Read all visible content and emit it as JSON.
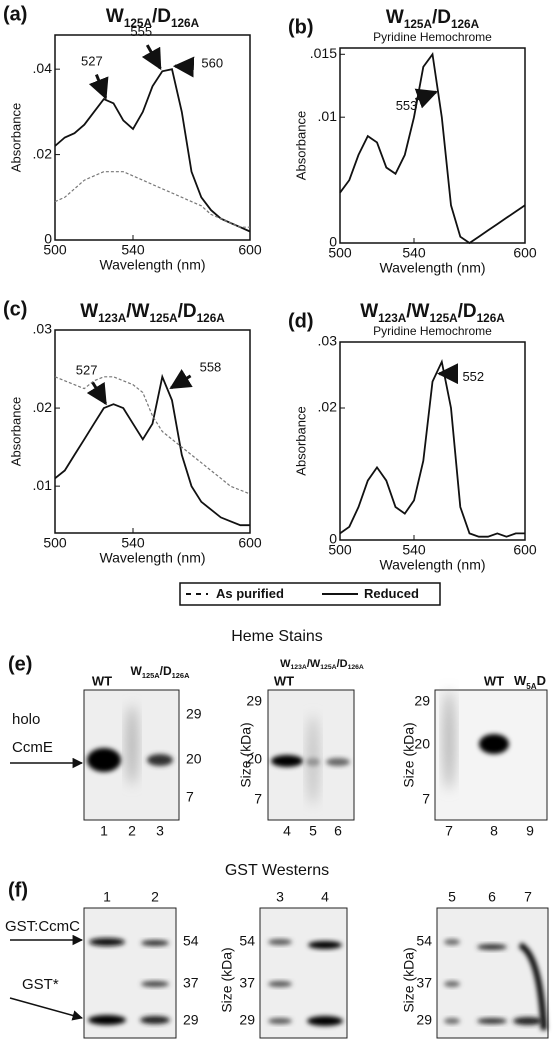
{
  "chart_data": [
    {
      "type": "line",
      "panel": "(a)",
      "title": "W125A/D126A",
      "x_label": "Wavelength (nm)",
      "y_label": "Absorbance",
      "x": [
        500,
        505,
        510,
        515,
        520,
        525,
        530,
        535,
        540,
        545,
        550,
        555,
        560,
        565,
        570,
        575,
        580,
        585,
        590,
        595,
        600
      ],
      "xlim": [
        500,
        600
      ],
      "xticks": [
        500,
        540,
        600
      ],
      "ylim": [
        0,
        0.048
      ],
      "yticks": [
        0,
        {
          "value": 0.02,
          "label": ".02"
        },
        {
          "value": 0.04,
          "label": ".04"
        }
      ],
      "series": [
        {
          "name": "Reduced",
          "color": "#111111",
          "style": "solid",
          "values": [
            0.022,
            0.024,
            0.025,
            0.027,
            0.03,
            0.033,
            0.032,
            0.028,
            0.026,
            0.03,
            0.036,
            0.0395,
            0.04,
            0.03,
            0.016,
            0.01,
            0.007,
            0.005,
            0.004,
            0.003,
            0.002
          ]
        },
        {
          "name": "As purified",
          "color": "#777777",
          "style": "dashed",
          "values": [
            0.009,
            0.01,
            0.012,
            0.014,
            0.015,
            0.016,
            0.016,
            0.016,
            0.015,
            0.014,
            0.013,
            0.012,
            0.011,
            0.01,
            0.009,
            0.008,
            0.006,
            0.005,
            0.004,
            0.003,
            0.003
          ]
        }
      ],
      "peaks": [
        527,
        555,
        560
      ]
    },
    {
      "type": "line",
      "panel": "(b)",
      "title": "W125A/D126A",
      "subtitle": "Pyridine Hemochrome",
      "x_label": "Wavelength (nm)",
      "y_label": "Absorbance",
      "x": [
        500,
        505,
        510,
        515,
        520,
        525,
        530,
        535,
        540,
        545,
        550,
        555,
        560,
        565,
        570,
        575,
        580,
        585,
        590,
        595,
        600
      ],
      "xlim": [
        500,
        600
      ],
      "xticks": [
        500,
        540,
        600
      ],
      "ylim": [
        0,
        0.0155
      ],
      "yticks": [
        0,
        {
          "value": 0.01,
          "label": ".01"
        },
        {
          "value": 0.015,
          "label": ".015"
        }
      ],
      "series": [
        {
          "color": "#111111",
          "style": "solid",
          "values": [
            0.004,
            0.005,
            0.007,
            0.0085,
            0.008,
            0.006,
            0.0055,
            0.007,
            0.01,
            0.014,
            0.015,
            0.01,
            0.003,
            0.0005,
            0,
            0.0005,
            0.001,
            0.0015,
            0.002,
            0.0025,
            0.003
          ]
        }
      ],
      "peaks": [
        553
      ]
    },
    {
      "type": "line",
      "panel": "(c)",
      "title": "W123A/W125A/D126A",
      "x_label": "Wavelength (nm)",
      "y_label": "Absorbance",
      "x": [
        500,
        505,
        510,
        515,
        520,
        525,
        530,
        535,
        540,
        545,
        550,
        555,
        560,
        565,
        570,
        575,
        580,
        585,
        590,
        595,
        600
      ],
      "xlim": [
        500,
        600
      ],
      "xticks": [
        500,
        540,
        600
      ],
      "ylim": [
        0.004,
        0.03
      ],
      "yticks": [
        {
          "value": 0.01,
          "label": ".01"
        },
        {
          "value": 0.02,
          "label": ".02"
        },
        {
          "value": 0.03,
          "label": ".03"
        }
      ],
      "series": [
        {
          "color": "#111111",
          "style": "solid",
          "values": [
            0.011,
            0.012,
            0.014,
            0.016,
            0.018,
            0.02,
            0.0205,
            0.02,
            0.018,
            0.016,
            0.018,
            0.024,
            0.021,
            0.014,
            0.01,
            0.008,
            0.007,
            0.006,
            0.0055,
            0.005,
            0.005
          ]
        },
        {
          "color": "#777777",
          "style": "dashed",
          "values": [
            0.024,
            0.0235,
            0.023,
            0.0225,
            0.0235,
            0.024,
            0.024,
            0.0235,
            0.023,
            0.022,
            0.019,
            0.017,
            0.016,
            0.015,
            0.014,
            0.013,
            0.012,
            0.011,
            0.01,
            0.0095,
            0.009
          ]
        }
      ],
      "peaks": [
        527,
        558
      ]
    },
    {
      "type": "line",
      "panel": "(d)",
      "title": "W123A/W125A/D126A",
      "subtitle": "Pyridine Hemochrome",
      "x_label": "Wavelength (nm)",
      "y_label": "Absorbance",
      "x": [
        500,
        505,
        510,
        515,
        520,
        525,
        530,
        535,
        540,
        545,
        550,
        555,
        560,
        565,
        570,
        575,
        580,
        585,
        590,
        595,
        600
      ],
      "xlim": [
        500,
        600
      ],
      "xticks": [
        500,
        540,
        600
      ],
      "ylim": [
        0,
        0.03
      ],
      "yticks": [
        0,
        {
          "value": 0.02,
          "label": ".02"
        },
        {
          "value": 0.03,
          "label": ".03"
        }
      ],
      "series": [
        {
          "color": "#111111",
          "style": "solid",
          "values": [
            0.001,
            0.002,
            0.005,
            0.009,
            0.011,
            0.009,
            0.005,
            0.004,
            0.006,
            0.012,
            0.024,
            0.027,
            0.02,
            0.005,
            0.001,
            0.0005,
            0.0005,
            0.001,
            0.0005,
            0.001,
            0.001
          ]
        }
      ],
      "peaks": [
        552
      ]
    }
  ],
  "heme_stains": {
    "title": "Heme Stains",
    "panel": "(e)",
    "side_labels": [
      "holo",
      "CcmE"
    ],
    "size_label": "Size (kDa)",
    "blots": [
      {
        "lanes": [
          "WT",
          "W125A/D126A"
        ],
        "markers": [
          29,
          20,
          7
        ],
        "numbers": [
          1,
          2,
          3
        ]
      },
      {
        "lanes": [
          "WT",
          "W123A/W125A/D126A"
        ],
        "markers": [
          29,
          20,
          7
        ],
        "numbers": [
          4,
          5,
          6
        ]
      },
      {
        "lanes": [
          "WT",
          "W5AD"
        ],
        "markers": [
          29,
          20,
          7
        ],
        "numbers": [
          7,
          8,
          9
        ]
      }
    ]
  },
  "gst_westerns": {
    "title": "GST Westerns",
    "panel": "(f)",
    "side_labels": [
      "GST:CcmC",
      "GST*"
    ],
    "size_label": "Size (kDa)",
    "blots": [
      {
        "markers": [
          54,
          37,
          29
        ],
        "numbers": [
          1,
          2
        ]
      },
      {
        "markers": [
          54,
          37,
          29
        ],
        "numbers": [
          3,
          4
        ]
      },
      {
        "markers": [
          54,
          37,
          29
        ],
        "numbers": [
          5,
          6,
          7
        ]
      }
    ]
  }
}
